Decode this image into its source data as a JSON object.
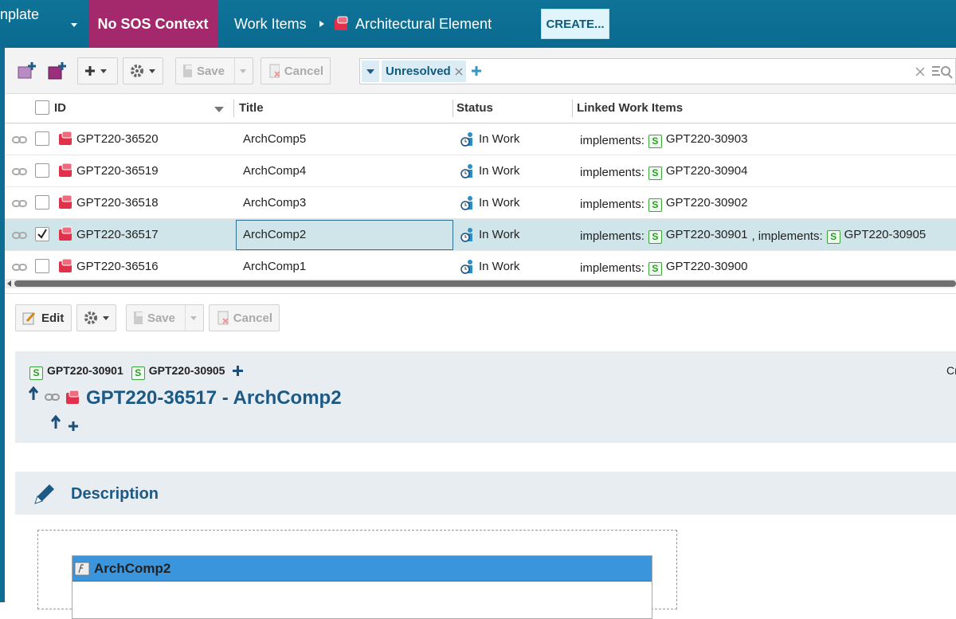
{
  "header": {
    "app_title": "nplate",
    "context": "No SOS Context",
    "breadcrumb": [
      "Work Items",
      "Architectural Element"
    ],
    "create_button": "CREATE..."
  },
  "toolbar": {
    "save": "Save",
    "cancel": "Cancel",
    "filter": "Unresolved"
  },
  "table": {
    "columns": [
      "ID",
      "Title",
      "Status",
      "Linked Work Items"
    ],
    "link_badge": "S",
    "rows": [
      {
        "id": "GPT220-36520",
        "title": "ArchComp5",
        "status": "In Work",
        "selected": false,
        "links": [
          {
            "relation": "implements:",
            "id": "GPT220-30903"
          }
        ]
      },
      {
        "id": "GPT220-36519",
        "title": "ArchComp4",
        "status": "In Work",
        "selected": false,
        "links": [
          {
            "relation": "implements:",
            "id": "GPT220-30904"
          }
        ]
      },
      {
        "id": "GPT220-36518",
        "title": "ArchComp3",
        "status": "In Work",
        "selected": false,
        "links": [
          {
            "relation": "implements:",
            "id": "GPT220-30902"
          }
        ]
      },
      {
        "id": "GPT220-36517",
        "title": "ArchComp2",
        "status": "In Work",
        "selected": true,
        "links": [
          {
            "relation": "implements:",
            "id": "GPT220-30901"
          },
          {
            "relation": ", implements:",
            "id": "GPT220-30905"
          }
        ]
      },
      {
        "id": "GPT220-36516",
        "title": "ArchComp1",
        "status": "In Work",
        "selected": false,
        "links": [
          {
            "relation": "implements:",
            "id": "GPT220-30900"
          }
        ]
      }
    ]
  },
  "detail": {
    "toolbar": {
      "edit": "Edit",
      "save": "Save",
      "cancel": "Cancel"
    },
    "linked": [
      "GPT220-30901",
      "GPT220-30905"
    ],
    "title": "GPT220-36517 - ArchComp2",
    "side_label": "Cr",
    "section": "Description",
    "embedded_title": "ArchComp2"
  }
}
